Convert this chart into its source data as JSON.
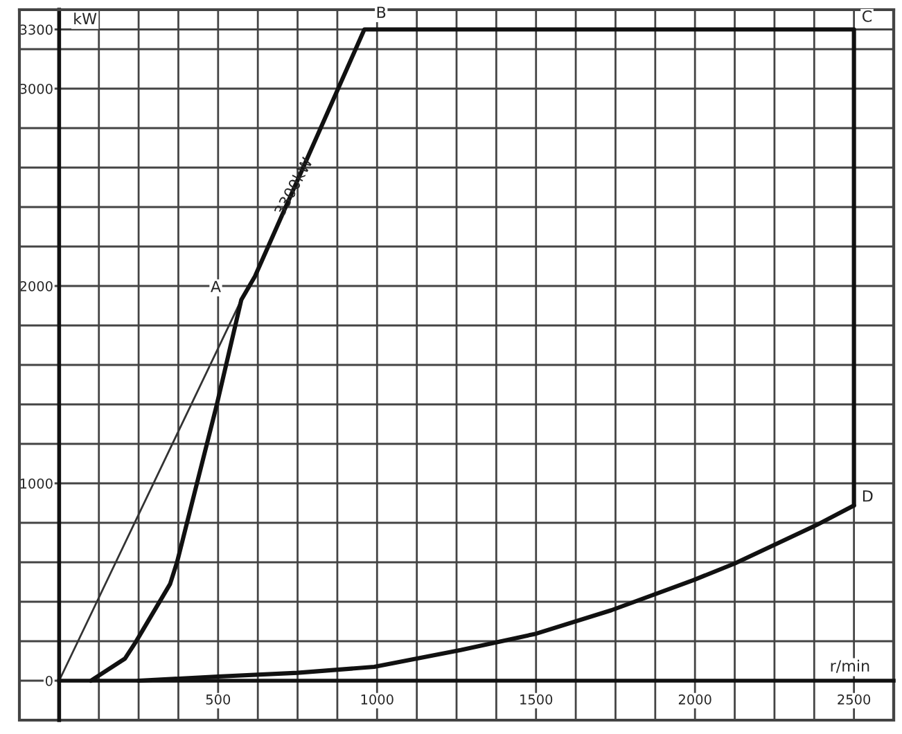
{
  "chart_data": {
    "type": "line",
    "xlabel": "r/min",
    "ylabel": "kW",
    "xlim": [
      -125,
      2625
    ],
    "ylim": [
      -200,
      3400
    ],
    "xticks": [
      {
        "value": -125,
        "label": null
      },
      {
        "value": 0,
        "label": null
      },
      {
        "value": 125,
        "label": null
      },
      {
        "value": 250,
        "label": null
      },
      {
        "value": 375,
        "label": null
      },
      500,
      {
        "value": 625,
        "label": null
      },
      {
        "value": 750,
        "label": null
      },
      {
        "value": 875,
        "label": null
      },
      1000,
      {
        "value": 1125,
        "label": null
      },
      {
        "value": 1250,
        "label": null
      },
      {
        "value": 1375,
        "label": null
      },
      1500,
      {
        "value": 1625,
        "label": null
      },
      {
        "value": 1750,
        "label": null
      },
      {
        "value": 1875,
        "label": null
      },
      2000,
      {
        "value": 2125,
        "label": null
      },
      {
        "value": 2250,
        "label": null
      },
      {
        "value": 2375,
        "label": null
      },
      2500,
      {
        "value": 2625,
        "label": null
      }
    ],
    "yticks": [
      {
        "value": -200,
        "label": null
      },
      0,
      {
        "value": 200,
        "label": null
      },
      {
        "value": 400,
        "label": null
      },
      {
        "value": 600,
        "label": null
      },
      {
        "value": 800,
        "label": null
      },
      1000,
      {
        "value": 1200,
        "label": null
      },
      {
        "value": 1400,
        "label": null
      },
      {
        "value": 1600,
        "label": null
      },
      {
        "value": 1800,
        "label": null
      },
      2000,
      {
        "value": 2200,
        "label": null
      },
      {
        "value": 2400,
        "label": null
      },
      {
        "value": 2600,
        "label": null
      },
      {
        "value": 2800,
        "label": null
      },
      3000,
      {
        "value": 3200,
        "label": null
      },
      3300,
      {
        "value": 3400,
        "label": null
      }
    ],
    "grid": true,
    "marker": "none",
    "line_style": "solid",
    "legend": false,
    "series": [
      {
        "color": "#333333",
        "x": [
          0,
          573
        ],
        "values": [
          0,
          1930
        ]
      },
      {
        "color": "#111111",
        "x": [
          100,
          207,
          241,
          349,
          371,
          496,
          573,
          616,
          960,
          2500,
          2500
        ],
        "values": [
          0,
          112,
          196,
          490,
          601,
          1399,
          1930,
          2049,
          3300,
          3300,
          888
        ]
      },
      {
        "color": "#111111",
        "x": [
          250,
          500,
          750,
          991,
          1263,
          1500,
          1737,
          1996,
          2125,
          2384,
          2500
        ],
        "values": [
          0,
          21,
          40,
          70,
          155,
          238,
          357,
          510,
          594,
          790,
          888
        ]
      }
    ],
    "annotations": [
      {
        "text": "A",
        "x": 573,
        "y": 1930
      },
      {
        "text": "B",
        "x": 960,
        "y": 3300
      },
      {
        "text": "C",
        "x": 2500,
        "y": 3300
      },
      {
        "text": "D",
        "x": 2500,
        "y": 888
      },
      {
        "text": "3300kW",
        "x": 740,
        "y": 2500
      }
    ]
  }
}
